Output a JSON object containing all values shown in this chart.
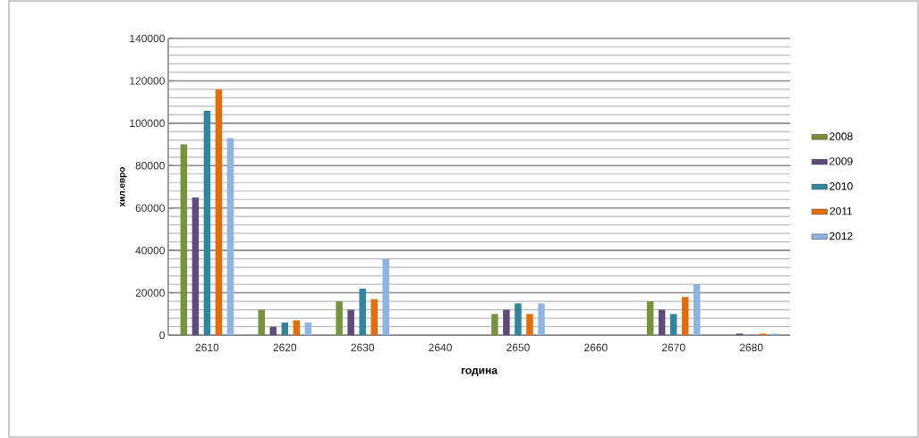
{
  "chart_data": {
    "type": "bar",
    "xlabel": "година",
    "ylabel": "хил.евро",
    "categories": [
      "2610",
      "2620",
      "2630",
      "2640",
      "2650",
      "2660",
      "2670",
      "2680"
    ],
    "series": [
      {
        "name": "2008",
        "color": "#77933c",
        "values": [
          90000,
          12000,
          16000,
          0,
          10000,
          0,
          16000,
          0
        ]
      },
      {
        "name": "2009",
        "color": "#604a7b",
        "values": [
          65000,
          4000,
          12000,
          0,
          12000,
          0,
          12000,
          700
        ]
      },
      {
        "name": "2010",
        "color": "#31859c",
        "values": [
          106000,
          6000,
          22000,
          0,
          15000,
          0,
          10000,
          0
        ]
      },
      {
        "name": "2011",
        "color": "#e46c0a",
        "values": [
          116000,
          7000,
          17000,
          0,
          10000,
          0,
          18000,
          700
        ]
      },
      {
        "name": "2012",
        "color": "#8eb4e3",
        "values": [
          93000,
          6000,
          36000,
          0,
          15000,
          0,
          24000,
          700
        ]
      }
    ],
    "ylim": [
      0,
      140000
    ],
    "yticks": [
      0,
      20000,
      40000,
      60000,
      80000,
      100000,
      120000,
      140000
    ],
    "grid": "y",
    "legend": "right"
  }
}
